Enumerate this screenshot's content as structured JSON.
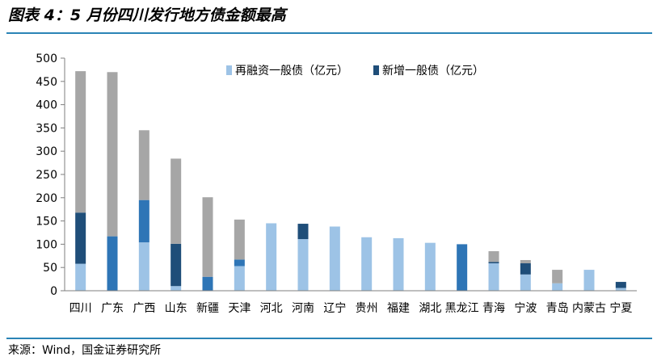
{
  "header": {
    "title": "图表 4：5 月份四川发行地方债金额最高"
  },
  "footer": {
    "source": "来源：Wind，国金证券研究所"
  },
  "colors": {
    "refinance_general": "#9dc3e6",
    "new_general": "#1f4e79",
    "refinance_special_implied": "#a6a6a6",
    "bright_blue": "#2e75b6"
  },
  "chart_data": {
    "type": "bar",
    "stacked": true,
    "title": "",
    "xlabel": "",
    "ylabel": "",
    "ylim": [
      0,
      500
    ],
    "yticks": [
      0,
      50,
      100,
      150,
      200,
      250,
      300,
      350,
      400,
      450,
      500
    ],
    "grid": false,
    "legend_position": "top-center",
    "categories": [
      "四川",
      "广东",
      "广西",
      "山东",
      "新疆",
      "天津",
      "河北",
      "河南",
      "辽宁",
      "贵州",
      "福建",
      "湖北",
      "黑龙江",
      "青海",
      "宁波",
      "青岛",
      "内蒙古",
      "宁夏"
    ],
    "legend": [
      {
        "name": "再融资一般债（亿元）",
        "color": "#9dc3e6"
      },
      {
        "name": "新增一般债（亿元）",
        "color": "#1f4e79"
      }
    ],
    "bars": [
      {
        "segments": [
          {
            "value": 58,
            "color": "#9dc3e6"
          },
          {
            "value": 110,
            "color": "#1f4e79"
          },
          {
            "value": 304,
            "color": "#a6a6a6"
          }
        ]
      },
      {
        "segments": [
          {
            "value": 117,
            "color": "#2e75b6"
          },
          {
            "value": 353,
            "color": "#a6a6a6"
          }
        ]
      },
      {
        "segments": [
          {
            "value": 104,
            "color": "#9dc3e6"
          },
          {
            "value": 91,
            "color": "#2e75b6"
          },
          {
            "value": 150,
            "color": "#a6a6a6"
          }
        ]
      },
      {
        "segments": [
          {
            "value": 10,
            "color": "#9dc3e6"
          },
          {
            "value": 91,
            "color": "#1f4e79"
          },
          {
            "value": 183,
            "color": "#a6a6a6"
          }
        ]
      },
      {
        "segments": [
          {
            "value": 30,
            "color": "#2e75b6"
          },
          {
            "value": 171,
            "color": "#a6a6a6"
          }
        ]
      },
      {
        "segments": [
          {
            "value": 53,
            "color": "#9dc3e6"
          },
          {
            "value": 14,
            "color": "#2e75b6"
          },
          {
            "value": 86,
            "color": "#a6a6a6"
          }
        ]
      },
      {
        "segments": [
          {
            "value": 145,
            "color": "#9dc3e6"
          }
        ]
      },
      {
        "segments": [
          {
            "value": 111,
            "color": "#9dc3e6"
          },
          {
            "value": 33,
            "color": "#1f4e79"
          }
        ]
      },
      {
        "segments": [
          {
            "value": 138,
            "color": "#9dc3e6"
          }
        ]
      },
      {
        "segments": [
          {
            "value": 115,
            "color": "#9dc3e6"
          }
        ]
      },
      {
        "segments": [
          {
            "value": 113,
            "color": "#9dc3e6"
          }
        ]
      },
      {
        "segments": [
          {
            "value": 103,
            "color": "#9dc3e6"
          }
        ]
      },
      {
        "segments": [
          {
            "value": 100,
            "color": "#2e75b6"
          }
        ]
      },
      {
        "segments": [
          {
            "value": 59,
            "color": "#9dc3e6"
          },
          {
            "value": 3,
            "color": "#1f4e79"
          },
          {
            "value": 23,
            "color": "#a6a6a6"
          }
        ]
      },
      {
        "segments": [
          {
            "value": 35,
            "color": "#9dc3e6"
          },
          {
            "value": 24,
            "color": "#1f4e79"
          },
          {
            "value": 7,
            "color": "#a6a6a6"
          }
        ]
      },
      {
        "segments": [
          {
            "value": 16,
            "color": "#9dc3e6"
          },
          {
            "value": 29,
            "color": "#a6a6a6"
          }
        ]
      },
      {
        "segments": [
          {
            "value": 45,
            "color": "#9dc3e6"
          }
        ]
      },
      {
        "segments": [
          {
            "value": 6,
            "color": "#9dc3e6"
          },
          {
            "value": 13,
            "color": "#1f4e79"
          }
        ]
      }
    ]
  }
}
